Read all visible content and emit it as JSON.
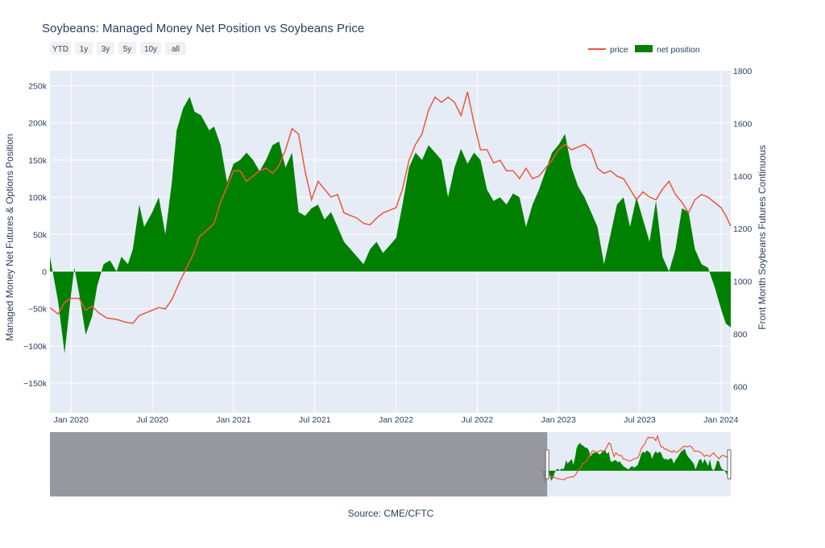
{
  "colors": {
    "plot_bg": "#e5ecf6",
    "grid": "#ffffff",
    "net_position": "#008000",
    "price": "#ef553b",
    "range_mask": "#8a8a8f"
  },
  "chart_data": {
    "type": "area",
    "title": "Soybeans: Managed Money Net Position vs Soybeans Price",
    "source": "Source: CME/CFTC",
    "range_buttons": [
      "YTD",
      "1y",
      "3y",
      "5y",
      "10y",
      "all"
    ],
    "legend": {
      "placement": "top-right",
      "entries": [
        "price",
        "net position"
      ]
    },
    "x_tick_labels": [
      "Jan 2020",
      "Jul 2020",
      "Jan 2021",
      "Jul 2021",
      "Jan 2022",
      "Jul 2022",
      "Jan 2023",
      "Jul 2023",
      "Jan 2024"
    ],
    "x_ticks": [
      2020.0,
      2020.5,
      2021.0,
      2021.5,
      2022.0,
      2022.5,
      2023.0,
      2023.5,
      2024.0
    ],
    "x_range": [
      2019.87,
      2024.06
    ],
    "y_left": {
      "label": "Managed Money Net Futures & Options Position",
      "range": [
        -190000,
        270000
      ],
      "tick_values": [
        250000,
        200000,
        150000,
        100000,
        50000,
        0,
        -50000,
        -100000,
        -150000
      ],
      "tick_labels": [
        "250k",
        "200k",
        "150k",
        "100k",
        "50k",
        "0",
        "−50k",
        "−100k",
        "−150k"
      ]
    },
    "y_right": {
      "label": "Front Month Soybeans Futures Continuous",
      "range": [
        500,
        1800
      ],
      "tick_values": [
        1800,
        1600,
        1400,
        1200,
        1000,
        800,
        600
      ],
      "tick_labels": [
        "1800",
        "1600",
        "1400",
        "1200",
        "1000",
        "800",
        "600"
      ]
    },
    "navigator": {
      "full_range": [
        2009.0,
        2024.06
      ],
      "selected": [
        2020.0,
        2024.06
      ]
    },
    "series": [
      {
        "name": "net position",
        "axis": "left",
        "x": [
          2019.87,
          2019.92,
          2019.96,
          2020.0,
          2020.02,
          2020.05,
          2020.09,
          2020.13,
          2020.16,
          2020.2,
          2020.24,
          2020.28,
          2020.31,
          2020.35,
          2020.38,
          2020.42,
          2020.45,
          2020.5,
          2020.54,
          2020.58,
          2020.62,
          2020.65,
          2020.69,
          2020.73,
          2020.76,
          2020.8,
          2020.85,
          2020.88,
          2020.92,
          2020.96,
          2021.0,
          2021.04,
          2021.08,
          2021.12,
          2021.16,
          2021.2,
          2021.24,
          2021.28,
          2021.32,
          2021.36,
          2021.4,
          2021.44,
          2021.48,
          2021.52,
          2021.56,
          2021.6,
          2021.64,
          2021.68,
          2021.72,
          2021.76,
          2021.8,
          2021.84,
          2021.88,
          2021.92,
          2021.96,
          2022.0,
          2022.04,
          2022.08,
          2022.12,
          2022.16,
          2022.2,
          2022.24,
          2022.28,
          2022.32,
          2022.36,
          2022.4,
          2022.44,
          2022.48,
          2022.52,
          2022.56,
          2022.6,
          2022.64,
          2022.68,
          2022.72,
          2022.76,
          2022.8,
          2022.84,
          2022.88,
          2022.92,
          2022.96,
          2023.0,
          2023.04,
          2023.08,
          2023.12,
          2023.16,
          2023.2,
          2023.24,
          2023.28,
          2023.32,
          2023.36,
          2023.4,
          2023.44,
          2023.48,
          2023.52,
          2023.56,
          2023.6,
          2023.64,
          2023.68,
          2023.72,
          2023.76,
          2023.8,
          2023.84,
          2023.88,
          2023.92,
          2023.96,
          2024.0,
          2024.03,
          2024.06
        ],
        "values": [
          20000,
          -40000,
          -110000,
          -30000,
          5000,
          -30000,
          -85000,
          -60000,
          -20000,
          10000,
          15000,
          0,
          20000,
          10000,
          30000,
          90000,
          60000,
          80000,
          100000,
          50000,
          120000,
          190000,
          220000,
          235000,
          215000,
          210000,
          190000,
          195000,
          170000,
          120000,
          145000,
          150000,
          160000,
          150000,
          135000,
          150000,
          170000,
          175000,
          140000,
          160000,
          80000,
          75000,
          85000,
          90000,
          70000,
          80000,
          60000,
          40000,
          30000,
          20000,
          10000,
          30000,
          40000,
          25000,
          35000,
          45000,
          90000,
          140000,
          160000,
          150000,
          170000,
          160000,
          150000,
          100000,
          140000,
          165000,
          145000,
          160000,
          150000,
          110000,
          95000,
          100000,
          90000,
          105000,
          100000,
          60000,
          90000,
          110000,
          135000,
          160000,
          170000,
          185000,
          140000,
          115000,
          100000,
          80000,
          60000,
          10000,
          50000,
          90000,
          100000,
          60000,
          100000,
          70000,
          40000,
          95000,
          20000,
          0,
          30000,
          85000,
          80000,
          30000,
          10000,
          5000,
          -20000,
          -50000,
          -70000,
          -75000
        ]
      },
      {
        "name": "price",
        "axis": "right",
        "x": [
          2019.87,
          2019.92,
          2019.96,
          2020.0,
          2020.05,
          2020.09,
          2020.13,
          2020.17,
          2020.22,
          2020.28,
          2020.33,
          2020.38,
          2020.42,
          2020.46,
          2020.5,
          2020.54,
          2020.58,
          2020.62,
          2020.67,
          2020.71,
          2020.75,
          2020.79,
          2020.83,
          2020.88,
          2020.92,
          2020.96,
          2021.0,
          2021.04,
          2021.08,
          2021.12,
          2021.16,
          2021.2,
          2021.24,
          2021.28,
          2021.32,
          2021.36,
          2021.4,
          2021.44,
          2021.48,
          2021.52,
          2021.56,
          2021.6,
          2021.64,
          2021.68,
          2021.72,
          2021.76,
          2021.8,
          2021.84,
          2021.88,
          2021.92,
          2021.96,
          2022.0,
          2022.04,
          2022.08,
          2022.12,
          2022.16,
          2022.2,
          2022.24,
          2022.28,
          2022.32,
          2022.36,
          2022.4,
          2022.44,
          2022.48,
          2022.52,
          2022.56,
          2022.6,
          2022.64,
          2022.68,
          2022.72,
          2022.76,
          2022.8,
          2022.84,
          2022.88,
          2022.92,
          2022.96,
          2023.0,
          2023.04,
          2023.08,
          2023.12,
          2023.16,
          2023.2,
          2023.24,
          2023.28,
          2023.32,
          2023.36,
          2023.4,
          2023.44,
          2023.48,
          2023.52,
          2023.56,
          2023.6,
          2023.64,
          2023.68,
          2023.72,
          2023.76,
          2023.8,
          2023.84,
          2023.88,
          2023.92,
          2023.96,
          2024.0,
          2024.03,
          2024.06
        ],
        "values": [
          900,
          875,
          920,
          935,
          935,
          890,
          905,
          880,
          860,
          855,
          845,
          840,
          870,
          880,
          890,
          900,
          895,
          930,
          1000,
          1050,
          1100,
          1170,
          1190,
          1220,
          1300,
          1360,
          1420,
          1420,
          1380,
          1400,
          1420,
          1430,
          1410,
          1440,
          1500,
          1580,
          1560,
          1420,
          1310,
          1380,
          1350,
          1320,
          1330,
          1260,
          1250,
          1240,
          1220,
          1215,
          1240,
          1260,
          1270,
          1280,
          1350,
          1460,
          1520,
          1560,
          1650,
          1700,
          1680,
          1700,
          1680,
          1630,
          1720,
          1600,
          1500,
          1500,
          1450,
          1460,
          1420,
          1420,
          1390,
          1430,
          1390,
          1400,
          1430,
          1460,
          1500,
          1520,
          1500,
          1510,
          1520,
          1500,
          1430,
          1410,
          1420,
          1400,
          1390,
          1350,
          1310,
          1340,
          1320,
          1310,
          1350,
          1380,
          1330,
          1300,
          1260,
          1310,
          1330,
          1320,
          1300,
          1280,
          1250,
          1210
        ]
      }
    ]
  }
}
